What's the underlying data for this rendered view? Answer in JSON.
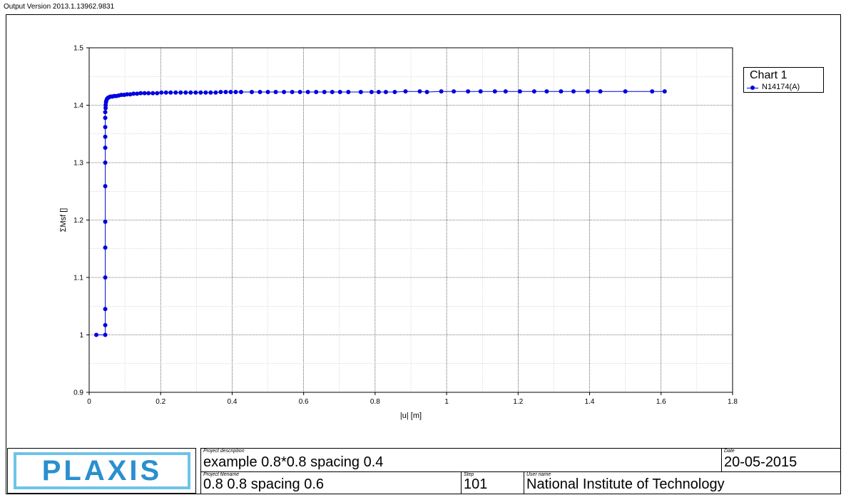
{
  "header": {
    "version": "Output Version 2013.1.13962.9831"
  },
  "legend": {
    "title": "Chart 1",
    "series_label": "N14174(A)"
  },
  "colors": {
    "series": "#0000e0",
    "grid": "#000000",
    "logo_border": "#6fc3e6",
    "logo_text": "#2a8fd0"
  },
  "footer": {
    "logo_text": "PLAXIS",
    "project_description_caption": "Project description",
    "project_description": "example 0.8*0.8 spacing 0.4",
    "date_caption": "Date",
    "date": "20-05-2015",
    "project_filename_caption": "Project filename",
    "project_filename": "0.8 0.8 spacing 0.6",
    "step_caption": "Step",
    "step": "101",
    "user_name_caption": "User name",
    "user_name": "National Institute of Technology"
  },
  "chart_data": {
    "type": "line",
    "title": "",
    "xlabel": "|u| [m]",
    "ylabel": "ΣMsf []",
    "xlim": [
      0,
      1.8
    ],
    "ylim": [
      0.9,
      1.5
    ],
    "xticks": [
      "0",
      "0.2",
      "0.4",
      "0.6",
      "0.8",
      "1",
      "1.2",
      "1.4",
      "1.6",
      "1.8"
    ],
    "yticks": [
      "0.9",
      "1",
      "1.1",
      "1.2",
      "1.3",
      "1.4",
      "1.5"
    ],
    "grid": true,
    "legend_position": "top-right",
    "series": [
      {
        "name": "N14174(A)",
        "x": [
          0.02,
          0.045,
          0.045,
          0.045,
          0.045,
          0.045,
          0.045,
          0.045,
          0.045,
          0.045,
          0.045,
          0.045,
          0.045,
          0.045,
          0.046,
          0.046,
          0.047,
          0.048,
          0.05,
          0.053,
          0.056,
          0.06,
          0.065,
          0.07,
          0.076,
          0.083,
          0.09,
          0.098,
          0.106,
          0.115,
          0.124,
          0.134,
          0.144,
          0.155,
          0.166,
          0.178,
          0.19,
          0.202,
          0.215,
          0.228,
          0.242,
          0.256,
          0.27,
          0.284,
          0.298,
          0.312,
          0.326,
          0.34,
          0.354,
          0.368,
          0.382,
          0.396,
          0.41,
          0.425,
          0.455,
          0.478,
          0.5,
          0.522,
          0.545,
          0.568,
          0.59,
          0.612,
          0.635,
          0.658,
          0.68,
          0.702,
          0.725,
          0.76,
          0.79,
          0.81,
          0.83,
          0.855,
          0.885,
          0.925,
          0.945,
          0.985,
          1.02,
          1.06,
          1.095,
          1.135,
          1.165,
          1.205,
          1.245,
          1.28,
          1.32,
          1.355,
          1.395,
          1.43,
          1.5,
          1.575,
          1.61
        ],
        "y": [
          1.0,
          1.0,
          1.017,
          1.045,
          1.1,
          1.152,
          1.197,
          1.259,
          1.3,
          1.326,
          1.345,
          1.362,
          1.378,
          1.388,
          1.395,
          1.4,
          1.405,
          1.408,
          1.411,
          1.413,
          1.414,
          1.415,
          1.415,
          1.416,
          1.416,
          1.417,
          1.418,
          1.418,
          1.419,
          1.419,
          1.42,
          1.42,
          1.421,
          1.421,
          1.421,
          1.421,
          1.421,
          1.422,
          1.422,
          1.422,
          1.422,
          1.422,
          1.422,
          1.422,
          1.422,
          1.422,
          1.422,
          1.422,
          1.422,
          1.423,
          1.423,
          1.423,
          1.423,
          1.423,
          1.423,
          1.423,
          1.423,
          1.423,
          1.423,
          1.423,
          1.423,
          1.423,
          1.423,
          1.423,
          1.423,
          1.423,
          1.423,
          1.423,
          1.423,
          1.423,
          1.423,
          1.423,
          1.424,
          1.424,
          1.423,
          1.424,
          1.424,
          1.424,
          1.424,
          1.424,
          1.424,
          1.424,
          1.424,
          1.424,
          1.424,
          1.424,
          1.424,
          1.424,
          1.424,
          1.424,
          1.424
        ]
      }
    ]
  }
}
